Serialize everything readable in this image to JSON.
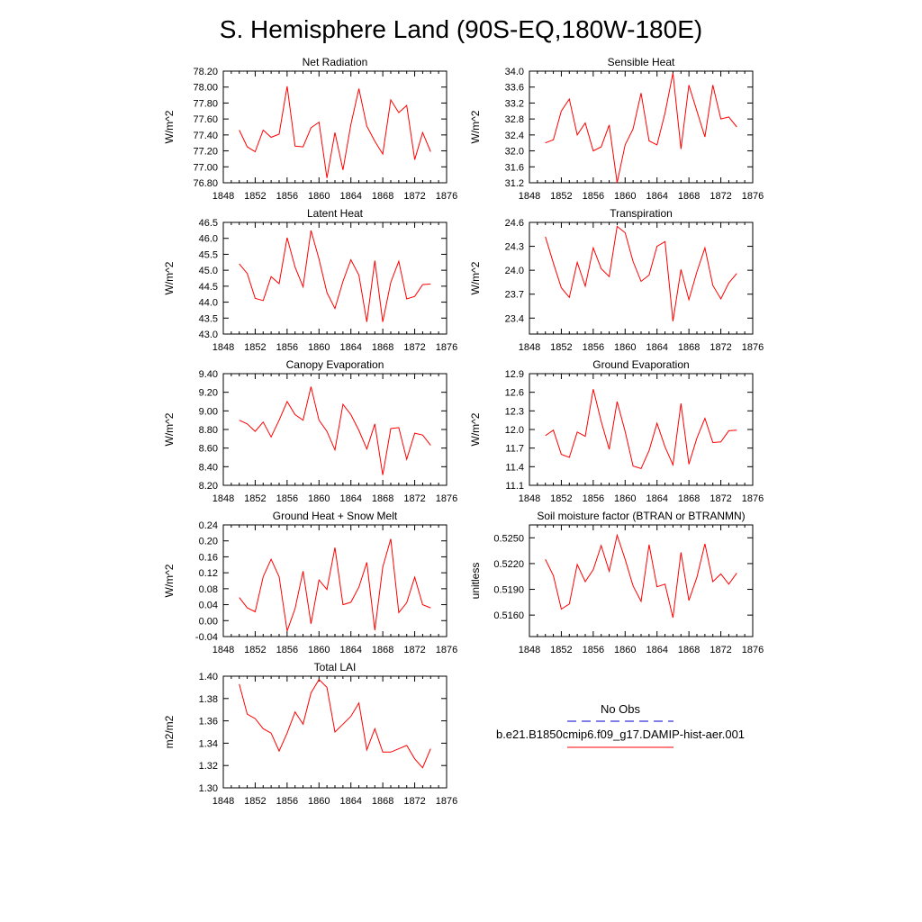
{
  "page_title": "S. Hemisphere Land (90S-EQ,180W-180E)",
  "colors": {
    "model_line": "#ff0000",
    "obs_line": "#0000cc",
    "axis": "#000000",
    "background": "#ffffff"
  },
  "legend": {
    "obs_label": "No Obs",
    "model_label": "b.e21.B1850cmip6.f09_g17.DAMIP-hist-aer.001",
    "obs_style": "dashed",
    "model_style": "solid"
  },
  "chart_data": [
    {
      "id": "net-radiation",
      "type": "line",
      "title": "Net Radiation",
      "ylabel": "W/m^2",
      "xlim": [
        1848,
        1876
      ],
      "ylim": [
        76.8,
        78.2
      ],
      "xticks": [
        "1848",
        "1852",
        "1856",
        "1860",
        "1864",
        "1868",
        "1872",
        "1876"
      ],
      "yticks": [
        "76.80",
        "77.00",
        "77.20",
        "77.40",
        "77.60",
        "77.80",
        "78.00",
        "78.20"
      ],
      "x": [
        1850,
        1851,
        1852,
        1853,
        1854,
        1855,
        1856,
        1857,
        1858,
        1859,
        1860,
        1861,
        1862,
        1863,
        1864,
        1865,
        1866,
        1867,
        1868,
        1869,
        1870,
        1871,
        1872,
        1873,
        1874
      ],
      "series": [
        {
          "values": [
            77.46,
            77.25,
            77.19,
            77.46,
            77.37,
            77.41,
            78.01,
            77.26,
            77.25,
            77.49,
            77.56,
            76.86,
            77.43,
            76.96,
            77.53,
            77.98,
            77.51,
            77.32,
            77.16,
            77.84,
            77.68,
            77.77,
            77.09,
            77.43,
            77.19
          ]
        }
      ]
    },
    {
      "id": "sensible-heat",
      "type": "line",
      "title": "Sensible Heat",
      "ylabel": "W/m^2",
      "xlim": [
        1848,
        1876
      ],
      "ylim": [
        31.2,
        34.0
      ],
      "xticks": [
        "1848",
        "1852",
        "1856",
        "1860",
        "1864",
        "1868",
        "1872",
        "1876"
      ],
      "yticks": [
        "31.2",
        "31.6",
        "32.0",
        "32.4",
        "32.8",
        "33.2",
        "33.6",
        "34.0"
      ],
      "x": [
        1850,
        1851,
        1852,
        1853,
        1854,
        1855,
        1856,
        1857,
        1858,
        1859,
        1860,
        1861,
        1862,
        1863,
        1864,
        1865,
        1866,
        1867,
        1868,
        1869,
        1870,
        1871,
        1872,
        1873,
        1874
      ],
      "series": [
        {
          "values": [
            32.2,
            32.28,
            33.0,
            33.3,
            32.4,
            32.7,
            32.0,
            32.1,
            32.65,
            31.2,
            32.15,
            32.55,
            33.45,
            32.25,
            32.15,
            32.95,
            33.95,
            32.05,
            33.65,
            33.0,
            32.35,
            33.65,
            32.8,
            32.85,
            32.6
          ]
        }
      ]
    },
    {
      "id": "latent-heat",
      "type": "line",
      "title": "Latent Heat",
      "ylabel": "W/m^2",
      "xlim": [
        1848,
        1876
      ],
      "ylim": [
        43.0,
        46.5
      ],
      "xticks": [
        "1848",
        "1852",
        "1856",
        "1860",
        "1864",
        "1868",
        "1872",
        "1876"
      ],
      "yticks": [
        "43.0",
        "43.5",
        "44.0",
        "44.5",
        "45.0",
        "45.5",
        "46.0",
        "46.5"
      ],
      "x": [
        1850,
        1851,
        1852,
        1853,
        1854,
        1855,
        1856,
        1857,
        1858,
        1859,
        1860,
        1861,
        1862,
        1863,
        1864,
        1865,
        1866,
        1867,
        1868,
        1869,
        1870,
        1871,
        1872,
        1873,
        1874
      ],
      "series": [
        {
          "values": [
            45.2,
            44.9,
            44.12,
            44.05,
            44.8,
            44.58,
            46.02,
            45.1,
            44.48,
            46.25,
            45.35,
            44.3,
            43.8,
            44.65,
            45.33,
            44.85,
            43.38,
            45.3,
            43.38,
            44.62,
            45.28,
            44.1,
            44.18,
            44.55,
            44.57
          ]
        }
      ]
    },
    {
      "id": "transpiration",
      "type": "line",
      "title": "Transpiration",
      "ylabel": "W/m^2",
      "xlim": [
        1848,
        1876
      ],
      "ylim": [
        23.2,
        24.6
      ],
      "xticks": [
        "1848",
        "1852",
        "1856",
        "1860",
        "1864",
        "1868",
        "1872",
        "1876"
      ],
      "yticks": [
        "23.4",
        "23.7",
        "24.0",
        "24.3",
        "24.6"
      ],
      "x": [
        1850,
        1851,
        1852,
        1853,
        1854,
        1855,
        1856,
        1857,
        1858,
        1859,
        1860,
        1861,
        1862,
        1863,
        1864,
        1865,
        1866,
        1867,
        1868,
        1869,
        1870,
        1871,
        1872,
        1873,
        1874
      ],
      "series": [
        {
          "values": [
            24.42,
            24.09,
            23.78,
            23.66,
            24.1,
            23.8,
            24.28,
            24.02,
            23.92,
            24.55,
            24.47,
            24.11,
            23.86,
            23.94,
            24.3,
            24.36,
            23.36,
            24.01,
            23.63,
            23.98,
            24.28,
            23.81,
            23.64,
            23.84,
            23.96
          ]
        }
      ]
    },
    {
      "id": "canopy-evaporation",
      "type": "line",
      "title": "Canopy Evaporation",
      "ylabel": "W/m^2",
      "xlim": [
        1848,
        1876
      ],
      "ylim": [
        8.2,
        9.4
      ],
      "xticks": [
        "1848",
        "1852",
        "1856",
        "1860",
        "1864",
        "1868",
        "1872",
        "1876"
      ],
      "yticks": [
        "8.20",
        "8.40",
        "8.60",
        "8.80",
        "9.00",
        "9.20",
        "9.40"
      ],
      "x": [
        1850,
        1851,
        1852,
        1853,
        1854,
        1855,
        1856,
        1857,
        1858,
        1859,
        1860,
        1861,
        1862,
        1863,
        1864,
        1865,
        1866,
        1867,
        1868,
        1869,
        1870,
        1871,
        1872,
        1873,
        1874
      ],
      "series": [
        {
          "values": [
            8.9,
            8.86,
            8.78,
            8.88,
            8.72,
            8.9,
            9.1,
            8.96,
            8.9,
            9.26,
            8.9,
            8.78,
            8.58,
            9.07,
            8.96,
            8.79,
            8.59,
            8.86,
            8.31,
            8.81,
            8.82,
            8.48,
            8.76,
            8.74,
            8.63
          ]
        }
      ]
    },
    {
      "id": "ground-evaporation",
      "type": "line",
      "title": "Ground Evaporation",
      "ylabel": "W/m^2",
      "xlim": [
        1848,
        1876
      ],
      "ylim": [
        11.1,
        12.9
      ],
      "xticks": [
        "1848",
        "1852",
        "1856",
        "1860",
        "1864",
        "1868",
        "1872",
        "1876"
      ],
      "yticks": [
        "11.1",
        "11.4",
        "11.7",
        "12.0",
        "12.3",
        "12.6",
        "12.9"
      ],
      "x": [
        1850,
        1851,
        1852,
        1853,
        1854,
        1855,
        1856,
        1857,
        1858,
        1859,
        1860,
        1861,
        1862,
        1863,
        1864,
        1865,
        1866,
        1867,
        1868,
        1869,
        1870,
        1871,
        1872,
        1873,
        1874
      ],
      "series": [
        {
          "values": [
            11.9,
            11.99,
            11.6,
            11.55,
            11.96,
            11.89,
            12.65,
            12.13,
            11.68,
            12.45,
            11.97,
            11.41,
            11.37,
            11.66,
            12.1,
            11.72,
            11.43,
            12.42,
            11.44,
            11.86,
            12.18,
            11.79,
            11.8,
            11.98,
            11.99
          ]
        }
      ]
    },
    {
      "id": "ground-heat-snow-melt",
      "type": "line",
      "title": "Ground Heat + Snow Melt",
      "ylabel": "W/m^2",
      "xlim": [
        1848,
        1876
      ],
      "ylim": [
        -0.04,
        0.24
      ],
      "xticks": [
        "1848",
        "1852",
        "1856",
        "1860",
        "1864",
        "1868",
        "1872",
        "1876"
      ],
      "yticks": [
        "-0.04",
        "0.00",
        "0.04",
        "0.08",
        "0.12",
        "0.16",
        "0.20",
        "0.24"
      ],
      "x": [
        1850,
        1851,
        1852,
        1853,
        1854,
        1855,
        1856,
        1857,
        1858,
        1859,
        1860,
        1861,
        1862,
        1863,
        1864,
        1865,
        1866,
        1867,
        1868,
        1869,
        1870,
        1871,
        1872,
        1873,
        1874
      ],
      "series": [
        {
          "values": [
            0.058,
            0.032,
            0.022,
            0.11,
            0.154,
            0.11,
            -0.026,
            0.03,
            0.124,
            -0.008,
            0.102,
            0.078,
            0.183,
            0.04,
            0.046,
            0.084,
            0.146,
            -0.024,
            0.134,
            0.205,
            0.02,
            0.045,
            0.109,
            0.04,
            0.032
          ]
        }
      ]
    },
    {
      "id": "soil-moisture-factor",
      "type": "line",
      "title": "Soil moisture factor (BTRAN or BTRANMN)",
      "ylabel": "unitless",
      "xlim": [
        1848,
        1876
      ],
      "ylim": [
        0.5135,
        0.5265
      ],
      "xticks": [
        "1848",
        "1852",
        "1856",
        "1860",
        "1864",
        "1868",
        "1872",
        "1876"
      ],
      "yticks": [
        "0.5160",
        "0.5190",
        "0.5220",
        "0.5250"
      ],
      "x": [
        1850,
        1851,
        1852,
        1853,
        1854,
        1855,
        1856,
        1857,
        1858,
        1859,
        1860,
        1861,
        1862,
        1863,
        1864,
        1865,
        1866,
        1867,
        1868,
        1869,
        1870,
        1871,
        1872,
        1873,
        1874
      ],
      "series": [
        {
          "values": [
            0.5225,
            0.5206,
            0.5167,
            0.5173,
            0.5219,
            0.5199,
            0.5213,
            0.5241,
            0.5211,
            0.5253,
            0.5225,
            0.5194,
            0.5176,
            0.5242,
            0.5193,
            0.5196,
            0.5157,
            0.5233,
            0.5177,
            0.5204,
            0.5243,
            0.5199,
            0.5208,
            0.5196,
            0.5209
          ]
        }
      ]
    },
    {
      "id": "total-lai",
      "type": "line",
      "title": "Total LAI",
      "ylabel": "m2/m2",
      "xlim": [
        1848,
        1876
      ],
      "ylim": [
        1.3,
        1.4
      ],
      "xticks": [
        "1848",
        "1852",
        "1856",
        "1860",
        "1864",
        "1868",
        "1872",
        "1876"
      ],
      "yticks": [
        "1.30",
        "1.32",
        "1.34",
        "1.36",
        "1.38",
        "1.40"
      ],
      "x": [
        1850,
        1851,
        1852,
        1853,
        1854,
        1855,
        1856,
        1857,
        1858,
        1859,
        1860,
        1861,
        1862,
        1863,
        1864,
        1865,
        1866,
        1867,
        1868,
        1869,
        1870,
        1871,
        1872,
        1873,
        1874
      ],
      "series": [
        {
          "values": [
            1.393,
            1.366,
            1.362,
            1.353,
            1.349,
            1.333,
            1.349,
            1.368,
            1.357,
            1.385,
            1.397,
            1.39,
            1.35,
            1.357,
            1.364,
            1.376,
            1.334,
            1.353,
            1.332,
            1.332,
            1.335,
            1.338,
            1.326,
            1.318,
            1.335
          ]
        }
      ]
    }
  ]
}
